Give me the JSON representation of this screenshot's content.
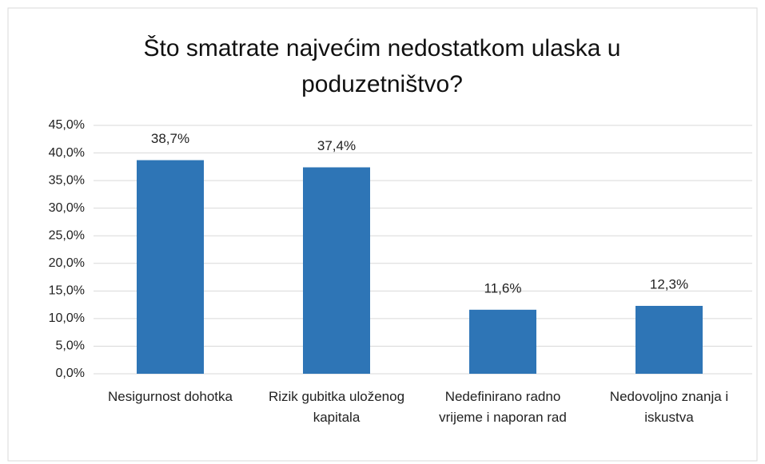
{
  "chart_data": {
    "type": "bar",
    "title": "Što smatrate najvećim nedostatkom ulaska u poduzetništvo?",
    "categories": [
      "Nesigurnost dohotka",
      "Rizik gubitka uloženog kapitala",
      "Nedefinirano radno vrijeme i naporan rad",
      "Nedovoljno znanja i iskustva"
    ],
    "values": [
      38.7,
      37.4,
      11.6,
      12.3
    ],
    "value_labels": [
      "38,7%",
      "37,4%",
      "11,6%",
      "12,3%"
    ],
    "color": "#2e75b6",
    "ylim": [
      0,
      45
    ],
    "yticks": [
      {
        "value": 0,
        "label": "0,0%"
      },
      {
        "value": 5,
        "label": "5,0%"
      },
      {
        "value": 10,
        "label": "10,0%"
      },
      {
        "value": 15,
        "label": "15,0%"
      },
      {
        "value": 20,
        "label": "20,0%"
      },
      {
        "value": 25,
        "label": "25,0%"
      },
      {
        "value": 30,
        "label": "30,0%"
      },
      {
        "value": 35,
        "label": "35,0%"
      },
      {
        "value": 40,
        "label": "40,0%"
      },
      {
        "value": 45,
        "label": "45,0%"
      }
    ],
    "grid": true
  }
}
